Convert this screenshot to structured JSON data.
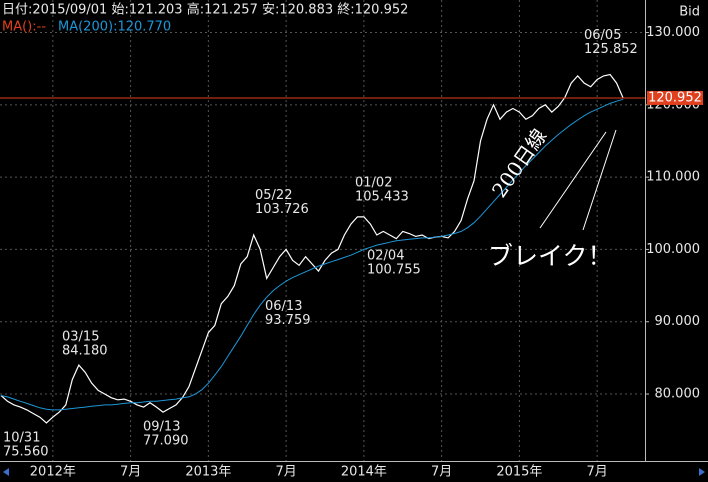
{
  "chart_data": {
    "type": "line",
    "header": {
      "info": "日付:2015/09/01 始:121.203 高:121.257 安:120.883 終:120.952",
      "ma_short": "MA():--",
      "ma_long": "MA(200):120.770",
      "price_side": "Bid"
    },
    "categories": [
      null,
      null,
      null,
      null,
      null,
      null,
      null,
      null,
      "2012年",
      null,
      null,
      null,
      null,
      null,
      null,
      null,
      null,
      null,
      null,
      null,
      "7月",
      null,
      null,
      null,
      null,
      null,
      null,
      null,
      null,
      null,
      null,
      null,
      "2013年",
      null,
      null,
      null,
      null,
      null,
      null,
      null,
      null,
      null,
      null,
      null,
      "7月",
      null,
      null,
      null,
      null,
      null,
      null,
      null,
      null,
      null,
      null,
      null,
      "2014年",
      null,
      null,
      null,
      null,
      null,
      null,
      null,
      null,
      null,
      null,
      null,
      "7月",
      null,
      null,
      null,
      null,
      null,
      null,
      null,
      null,
      null,
      null,
      null,
      "2015年",
      null,
      null,
      null,
      null,
      null,
      null,
      null,
      null,
      null,
      null,
      null,
      "7月",
      null,
      null,
      null,
      null
    ],
    "series": [
      {
        "name": "Bid",
        "color": "#ffffff",
        "values": [
          79.8,
          79.0,
          78.5,
          78.2,
          77.8,
          77.3,
          76.8,
          76.0,
          76.8,
          77.5,
          78.5,
          82.0,
          84.0,
          83.0,
          81.5,
          80.5,
          80.0,
          79.5,
          79.2,
          79.3,
          79.0,
          78.5,
          78.2,
          78.8,
          78.2,
          77.5,
          78.0,
          78.5,
          79.5,
          81.0,
          83.5,
          86.0,
          88.5,
          89.5,
          92.5,
          93.5,
          95.0,
          98.0,
          99.0,
          102.0,
          100.0,
          96.0,
          97.5,
          99.0,
          100.0,
          98.5,
          97.8,
          99.0,
          98.0,
          97.0,
          98.5,
          99.5,
          100.0,
          102.0,
          103.5,
          104.5,
          104.5,
          103.5,
          102.0,
          102.5,
          102.0,
          101.5,
          102.5,
          102.2,
          101.8,
          102.0,
          101.5,
          101.7,
          101.8,
          101.6,
          102.5,
          104.0,
          107.0,
          109.5,
          115.0,
          118.0,
          120.0,
          118.0,
          119.0,
          119.5,
          119.0,
          118.0,
          118.5,
          119.5,
          120.0,
          119.0,
          119.8,
          121.0,
          123.0,
          124.0,
          123.0,
          122.5,
          123.5,
          124.0,
          124.2,
          123.0,
          120.952
        ]
      },
      {
        "name": "MA(200)",
        "color": "#1e96d8",
        "values": [
          79.8,
          79.6,
          79.3,
          79.0,
          78.7,
          78.4,
          78.1,
          77.9,
          77.8,
          77.8,
          77.9,
          78.0,
          78.1,
          78.2,
          78.3,
          78.4,
          78.5,
          78.5,
          78.6,
          78.7,
          78.8,
          78.8,
          78.9,
          79.0,
          79.0,
          79.1,
          79.2,
          79.3,
          79.5,
          79.6,
          80.0,
          80.6,
          81.5,
          82.6,
          83.8,
          85.2,
          86.6,
          88.0,
          89.5,
          91.0,
          92.3,
          93.4,
          94.3,
          95.0,
          95.6,
          96.1,
          96.5,
          96.9,
          97.3,
          97.7,
          98.0,
          98.3,
          98.6,
          98.9,
          99.2,
          99.6,
          100.0,
          100.3,
          100.6,
          100.8,
          101.0,
          101.2,
          101.3,
          101.4,
          101.5,
          101.6,
          101.6,
          101.7,
          101.8,
          102.0,
          102.2,
          102.5,
          103.0,
          103.7,
          104.6,
          105.6,
          106.6,
          107.6,
          108.6,
          109.6,
          110.6,
          111.6,
          112.5,
          113.4,
          114.3,
          115.1,
          115.9,
          116.6,
          117.3,
          117.9,
          118.5,
          119.0,
          119.4,
          119.8,
          120.2,
          120.5,
          120.77
        ]
      }
    ],
    "hline": {
      "value": 120.952,
      "label": "120.952",
      "color": "#e0401e"
    },
    "annotations": [
      {
        "date": "10/31",
        "value": 75.56,
        "label": "75.560"
      },
      {
        "date": "03/15",
        "value": 84.18,
        "label": "84.180"
      },
      {
        "date": "09/13",
        "value": 77.09,
        "label": "77.090"
      },
      {
        "date": "05/22",
        "value": 103.726,
        "label": "103.726"
      },
      {
        "date": "06/13",
        "value": 93.759,
        "label": "93.759"
      },
      {
        "date": "01/02",
        "value": 105.433,
        "label": "105.433"
      },
      {
        "date": "02/04",
        "value": 100.755,
        "label": "100.755"
      },
      {
        "date": "06/05",
        "value": 125.852,
        "label": "125.852"
      }
    ],
    "notes": {
      "ma_line": "200日線",
      "breakout": "ブレイク！"
    },
    "ylim": [
      70.6,
      134.5
    ],
    "yticks": [
      {
        "value": 80,
        "label": "80.000"
      },
      {
        "value": 90,
        "label": "90.000"
      },
      {
        "value": 100,
        "label": "100.000"
      },
      {
        "value": 110,
        "label": "110.000"
      },
      {
        "value": 120,
        "label": "120.000"
      },
      {
        "value": 130,
        "label": "130.000"
      }
    ],
    "grid": true
  }
}
